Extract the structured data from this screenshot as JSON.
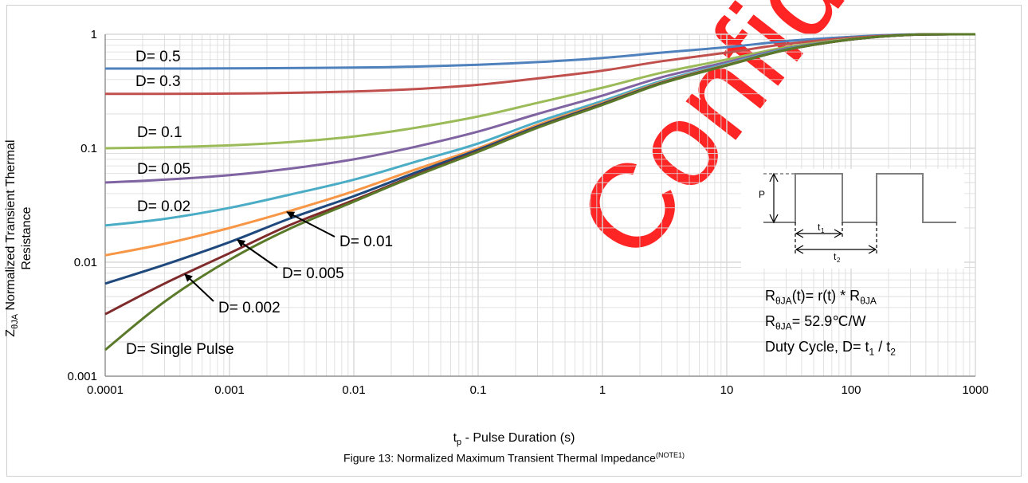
{
  "chart_data": {
    "type": "line",
    "title": "",
    "caption": "Figure 13: Normalized Maximum Transient Thermal Impedance",
    "caption_note": "(NOTE1)",
    "xlabel": {
      "main": "t",
      "sub": "p",
      "rest": " - Pulse Duration (s)"
    },
    "ylabel": {
      "main": "Z",
      "sub": "θJA",
      "rest": " Normalized Transient Thermal",
      "line2": "Resistance"
    },
    "x_scale": "log",
    "y_scale": "log",
    "xlim": [
      0.0001,
      1000
    ],
    "ylim": [
      0.001,
      1
    ],
    "x_ticks": [
      "0.0001",
      "0.001",
      "0.01",
      "0.1",
      "1",
      "10",
      "100",
      "1000"
    ],
    "y_ticks": [
      "0.001",
      "0.01",
      "0.1",
      "1"
    ],
    "grid": true,
    "x": [
      0.0001,
      0.0003,
      0.001,
      0.003,
      0.01,
      0.03,
      0.1,
      0.3,
      1,
      3,
      10,
      30,
      100,
      300,
      1000
    ],
    "series": [
      {
        "name": "D= 0.5",
        "color": "#4f81bd",
        "values": [
          0.5,
          0.5,
          0.502,
          0.505,
          0.51,
          0.52,
          0.54,
          0.57,
          0.62,
          0.69,
          0.77,
          0.87,
          0.95,
          0.995,
          1.0
        ]
      },
      {
        "name": "D= 0.3",
        "color": "#c0504d",
        "values": [
          0.3,
          0.3,
          0.302,
          0.306,
          0.315,
          0.33,
          0.36,
          0.41,
          0.48,
          0.58,
          0.69,
          0.82,
          0.93,
          0.99,
          1.0
        ]
      },
      {
        "name": "D= 0.1",
        "color": "#9bbb59",
        "values": [
          0.1,
          0.102,
          0.106,
          0.113,
          0.127,
          0.15,
          0.19,
          0.25,
          0.34,
          0.46,
          0.6,
          0.77,
          0.91,
          0.99,
          1.0
        ]
      },
      {
        "name": "D= 0.05",
        "color": "#8064a2",
        "values": [
          0.05,
          0.053,
          0.058,
          0.066,
          0.08,
          0.102,
          0.14,
          0.2,
          0.29,
          0.42,
          0.57,
          0.75,
          0.9,
          0.99,
          1.0
        ]
      },
      {
        "name": "D= 0.02",
        "color": "#4bacc6",
        "values": [
          0.021,
          0.024,
          0.03,
          0.039,
          0.053,
          0.075,
          0.11,
          0.17,
          0.26,
          0.39,
          0.55,
          0.74,
          0.9,
          0.99,
          1.0
        ]
      },
      {
        "name": "D= 0.01",
        "color": "#f79646",
        "values": [
          0.0115,
          0.0145,
          0.02,
          0.028,
          0.042,
          0.064,
          0.1,
          0.16,
          0.25,
          0.38,
          0.54,
          0.73,
          0.9,
          0.99,
          1.0
        ]
      },
      {
        "name": "D= 0.005",
        "color": "#1f497d",
        "values": [
          0.0065,
          0.0095,
          0.015,
          0.024,
          0.038,
          0.06,
          0.097,
          0.155,
          0.245,
          0.375,
          0.535,
          0.73,
          0.9,
          0.99,
          1.0
        ]
      },
      {
        "name": "D= 0.002",
        "color": "#7f2b2b",
        "values": [
          0.0035,
          0.0065,
          0.012,
          0.021,
          0.035,
          0.057,
          0.094,
          0.152,
          0.242,
          0.372,
          0.533,
          0.73,
          0.9,
          0.99,
          1.0
        ]
      },
      {
        "name": "D= Single Pulse",
        "color": "#5a7a2a",
        "values": [
          0.0017,
          0.0045,
          0.0105,
          0.0195,
          0.034,
          0.056,
          0.093,
          0.151,
          0.24,
          0.37,
          0.532,
          0.73,
          0.9,
          0.99,
          1.0
        ]
      }
    ],
    "annotations": [
      {
        "text": "D= 0.5"
      },
      {
        "text": "D= 0.3"
      },
      {
        "text": "D= 0.1"
      },
      {
        "text": "D= 0.05"
      },
      {
        "text": "D= 0.02"
      },
      {
        "text": "D= 0.01"
      },
      {
        "text": "D= 0.005"
      },
      {
        "text": "D= 0.002"
      },
      {
        "text": "D= Single Pulse"
      }
    ],
    "inset": {
      "p_label": "P",
      "t1_main": "t",
      "t1_sub": "1",
      "t2_main": "t",
      "t2_sub": "2"
    },
    "formulas": {
      "line1": {
        "a": "R",
        "a_sub": "θJA",
        "b": "(t)= r(t) * R",
        "b_sub": "θJA"
      },
      "line2": {
        "a": "R",
        "a_sub": "θJA",
        "b": "= 52.9℃/W"
      },
      "line3": {
        "a": "Duty Cycle, D= t",
        "a_sub": "1",
        "b": " / t",
        "b_sub": "2"
      }
    }
  },
  "watermark": "Confidential",
  "colors": {
    "grid": "#d9d9d9",
    "axis": "#868686",
    "watermark": "#ff1a1a"
  }
}
